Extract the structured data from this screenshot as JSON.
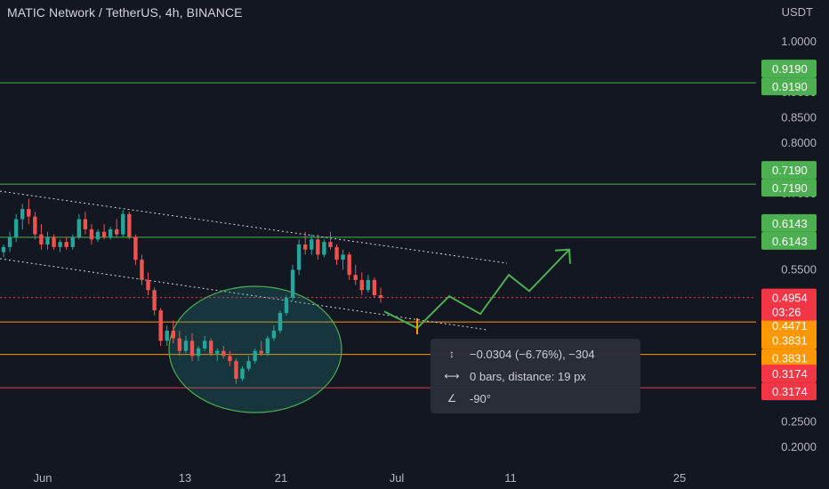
{
  "header": {
    "title": "MATIC Network / TetherUS, 4h, BINANCE",
    "currency": "USDT"
  },
  "colors": {
    "background": "#131722",
    "up": "#26a69a",
    "down": "#ef5350",
    "green_line": "#4caf50",
    "orange_line": "#ff9800",
    "red_line": "#f23645",
    "axis_text": "#b2b5be"
  },
  "chart_data": {
    "type": "candlestick",
    "title": "MATIC Network / TetherUS, 4h, BINANCE",
    "y_axis_ticks": [
      "1.0000",
      "0.9500",
      "0.9000",
      "0.8500",
      "0.8000",
      "0.7500",
      "0.7000",
      "0.6500",
      "0.6000",
      "0.5500",
      "0.5000",
      "0.4500",
      "0.4000",
      "0.3500",
      "0.3000",
      "0.2500",
      "0.2000"
    ],
    "x_axis_ticks": [
      "Jun",
      "13",
      "21",
      "Jul",
      "11",
      "25"
    ],
    "horizontal_levels": [
      {
        "value": 0.919,
        "label": "0.9190",
        "color": "#4caf50"
      },
      {
        "value": 0.719,
        "label": "0.7190",
        "color": "#4caf50"
      },
      {
        "value": 0.6143,
        "label": "0.6143",
        "color": "#4caf50"
      },
      {
        "value": 0.4471,
        "label": "0.4471",
        "color": "#ff9800"
      },
      {
        "value": 0.3831,
        "label": "0.3831",
        "color": "#ff9800"
      },
      {
        "value": 0.3174,
        "label": "0.3174",
        "color": "#f23645"
      }
    ],
    "last_price": {
      "value": 0.4954,
      "label": "0.4954",
      "countdown": "03:26"
    },
    "projection_path": [
      {
        "date": "Jun 30",
        "price": 0.468
      },
      {
        "date": "Jul 3",
        "price": 0.435
      },
      {
        "date": "Jul 6",
        "price": 0.498
      },
      {
        "date": "Jul 9",
        "price": 0.463
      },
      {
        "date": "Jul 11",
        "price": 0.54
      },
      {
        "date": "Jul 14",
        "price": 0.508
      },
      {
        "date": "Jul 17",
        "price": 0.59
      }
    ],
    "candles": [
      {
        "o": 0.585,
        "h": 0.6,
        "l": 0.575,
        "c": 0.595
      },
      {
        "o": 0.595,
        "h": 0.625,
        "l": 0.585,
        "c": 0.615
      },
      {
        "o": 0.615,
        "h": 0.66,
        "l": 0.605,
        "c": 0.65
      },
      {
        "o": 0.65,
        "h": 0.68,
        "l": 0.63,
        "c": 0.67
      },
      {
        "o": 0.67,
        "h": 0.69,
        "l": 0.64,
        "c": 0.655
      },
      {
        "o": 0.655,
        "h": 0.665,
        "l": 0.61,
        "c": 0.62
      },
      {
        "o": 0.62,
        "h": 0.64,
        "l": 0.59,
        "c": 0.6
      },
      {
        "o": 0.6,
        "h": 0.625,
        "l": 0.59,
        "c": 0.615
      },
      {
        "o": 0.615,
        "h": 0.62,
        "l": 0.59,
        "c": 0.595
      },
      {
        "o": 0.595,
        "h": 0.61,
        "l": 0.585,
        "c": 0.605
      },
      {
        "o": 0.605,
        "h": 0.615,
        "l": 0.59,
        "c": 0.595
      },
      {
        "o": 0.595,
        "h": 0.62,
        "l": 0.59,
        "c": 0.615
      },
      {
        "o": 0.615,
        "h": 0.66,
        "l": 0.61,
        "c": 0.65
      },
      {
        "o": 0.65,
        "h": 0.665,
        "l": 0.62,
        "c": 0.63
      },
      {
        "o": 0.63,
        "h": 0.64,
        "l": 0.6,
        "c": 0.61
      },
      {
        "o": 0.61,
        "h": 0.63,
        "l": 0.605,
        "c": 0.625
      },
      {
        "o": 0.625,
        "h": 0.64,
        "l": 0.61,
        "c": 0.615
      },
      {
        "o": 0.615,
        "h": 0.635,
        "l": 0.61,
        "c": 0.63
      },
      {
        "o": 0.63,
        "h": 0.65,
        "l": 0.615,
        "c": 0.62
      },
      {
        "o": 0.62,
        "h": 0.668,
        "l": 0.615,
        "c": 0.66
      },
      {
        "o": 0.66,
        "h": 0.665,
        "l": 0.61,
        "c": 0.615
      },
      {
        "o": 0.615,
        "h": 0.62,
        "l": 0.56,
        "c": 0.57
      },
      {
        "o": 0.57,
        "h": 0.58,
        "l": 0.52,
        "c": 0.53
      },
      {
        "o": 0.53,
        "h": 0.545,
        "l": 0.5,
        "c": 0.51
      },
      {
        "o": 0.51,
        "h": 0.515,
        "l": 0.46,
        "c": 0.47
      },
      {
        "o": 0.47,
        "h": 0.475,
        "l": 0.4,
        "c": 0.41
      },
      {
        "o": 0.41,
        "h": 0.44,
        "l": 0.4,
        "c": 0.43
      },
      {
        "o": 0.43,
        "h": 0.45,
        "l": 0.405,
        "c": 0.415
      },
      {
        "o": 0.415,
        "h": 0.43,
        "l": 0.38,
        "c": 0.39
      },
      {
        "o": 0.39,
        "h": 0.42,
        "l": 0.385,
        "c": 0.41
      },
      {
        "o": 0.41,
        "h": 0.425,
        "l": 0.37,
        "c": 0.38
      },
      {
        "o": 0.38,
        "h": 0.4,
        "l": 0.37,
        "c": 0.395
      },
      {
        "o": 0.395,
        "h": 0.42,
        "l": 0.39,
        "c": 0.41
      },
      {
        "o": 0.41,
        "h": 0.415,
        "l": 0.38,
        "c": 0.385
      },
      {
        "o": 0.385,
        "h": 0.395,
        "l": 0.37,
        "c": 0.39
      },
      {
        "o": 0.39,
        "h": 0.4,
        "l": 0.375,
        "c": 0.38
      },
      {
        "o": 0.38,
        "h": 0.39,
        "l": 0.36,
        "c": 0.37
      },
      {
        "o": 0.37,
        "h": 0.375,
        "l": 0.325,
        "c": 0.335
      },
      {
        "o": 0.335,
        "h": 0.36,
        "l": 0.33,
        "c": 0.355
      },
      {
        "o": 0.355,
        "h": 0.38,
        "l": 0.35,
        "c": 0.37
      },
      {
        "o": 0.37,
        "h": 0.395,
        "l": 0.365,
        "c": 0.39
      },
      {
        "o": 0.39,
        "h": 0.41,
        "l": 0.38,
        "c": 0.385
      },
      {
        "o": 0.385,
        "h": 0.42,
        "l": 0.38,
        "c": 0.415
      },
      {
        "o": 0.415,
        "h": 0.44,
        "l": 0.41,
        "c": 0.43
      },
      {
        "o": 0.43,
        "h": 0.47,
        "l": 0.425,
        "c": 0.465
      },
      {
        "o": 0.465,
        "h": 0.5,
        "l": 0.46,
        "c": 0.495
      },
      {
        "o": 0.495,
        "h": 0.56,
        "l": 0.49,
        "c": 0.55
      },
      {
        "o": 0.55,
        "h": 0.61,
        "l": 0.54,
        "c": 0.6
      },
      {
        "o": 0.6,
        "h": 0.625,
        "l": 0.58,
        "c": 0.59
      },
      {
        "o": 0.59,
        "h": 0.62,
        "l": 0.58,
        "c": 0.61
      },
      {
        "o": 0.61,
        "h": 0.62,
        "l": 0.57,
        "c": 0.58
      },
      {
        "o": 0.58,
        "h": 0.61,
        "l": 0.575,
        "c": 0.605
      },
      {
        "o": 0.605,
        "h": 0.625,
        "l": 0.59,
        "c": 0.595
      },
      {
        "o": 0.595,
        "h": 0.6,
        "l": 0.56,
        "c": 0.57
      },
      {
        "o": 0.57,
        "h": 0.59,
        "l": 0.55,
        "c": 0.58
      },
      {
        "o": 0.58,
        "h": 0.585,
        "l": 0.53,
        "c": 0.54
      },
      {
        "o": 0.54,
        "h": 0.56,
        "l": 0.52,
        "c": 0.53
      },
      {
        "o": 0.53,
        "h": 0.545,
        "l": 0.5,
        "c": 0.51
      },
      {
        "o": 0.51,
        "h": 0.54,
        "l": 0.505,
        "c": 0.53
      },
      {
        "o": 0.53,
        "h": 0.535,
        "l": 0.495,
        "c": 0.5
      },
      {
        "o": 0.5,
        "h": 0.515,
        "l": 0.485,
        "c": 0.495
      }
    ]
  },
  "measure_tool": {
    "price_change": "−0.0304 (−6.76%), −304",
    "bars_distance": "0 bars, distance: 19 px",
    "angle": "-90°"
  }
}
